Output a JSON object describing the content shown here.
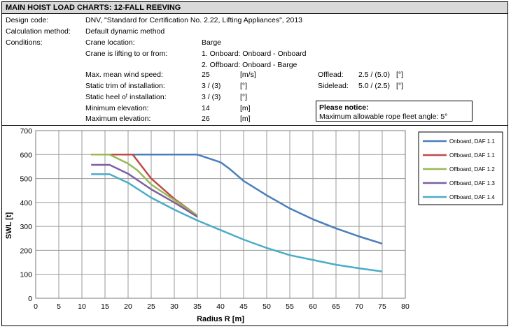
{
  "header": {
    "title": "MAIN HOIST LOAD CHARTS:  12-FALL REEVING",
    "design_code_label": "Design code:",
    "design_code_value": "DNV, \"Standard for Certification No. 2.22, Lifting Appliances\", 2013",
    "calc_label": "Calculation method:",
    "calc_value": "Default dynamic method",
    "conditions_label": "Conditions:",
    "crane_location_label": "Crane location:",
    "crane_location_value": "Barge",
    "lifting_label": "Crane is lifting to or from:",
    "lifting_1": "1. Onboard: Onboard - Onboard",
    "lifting_2": "2. Offboard: Onboard - Barge",
    "wind_label": "Max. mean wind speed:",
    "wind_value": "25",
    "wind_unit": "[m/s]",
    "trim_label": "Static trim of installation:",
    "trim_value": "3 / (3)",
    "trim_unit": "[°]",
    "heel_label": "Static heel oᶠ installation:",
    "heel_value": "3 / (3)",
    "heel_unit": "[°]",
    "min_elev_label": "Minimum elevation:",
    "min_elev_value": "14",
    "min_elev_unit": "[m]",
    "max_elev_label": "Maximum elevation:",
    "max_elev_value": "26",
    "max_elev_unit": "[m]",
    "offlead_label": "Offlead:",
    "offlead_value": "2.5 / (5.0)",
    "offlead_unit": "[°]",
    "sidelead_label": "Sidelead:",
    "sidelead_value": "5.0 / (2.5)",
    "sidelead_unit": "[°]",
    "notice_title": "Please notice:",
    "notice_text": "Maximum allowable rope fleet angle: 5°"
  },
  "chart_data": {
    "type": "line",
    "xlabel": "Radius R [m]",
    "ylabel": "SWL [t]",
    "xlim": [
      0,
      80
    ],
    "ylim": [
      0,
      700
    ],
    "xticks": [
      0,
      5,
      10,
      15,
      20,
      25,
      30,
      35,
      40,
      45,
      50,
      55,
      60,
      65,
      70,
      75,
      80
    ],
    "yticks": [
      0,
      100,
      200,
      300,
      400,
      500,
      600,
      700
    ],
    "grid": true,
    "legend_position": "right",
    "series": [
      {
        "name": "Onboard, DAF 1.1",
        "color": "#4a7ebb",
        "x": [
          12,
          16,
          20,
          25,
          30,
          35,
          40,
          42,
          45,
          50,
          55,
          60,
          65,
          70,
          75
        ],
        "y": [
          600,
          600,
          600,
          600,
          600,
          600,
          568,
          540,
          490,
          430,
          375,
          330,
          292,
          258,
          228
        ]
      },
      {
        "name": "Offboard, DAF 1.1",
        "color": "#be4b48",
        "x": [
          12,
          16,
          21,
          25,
          30,
          35
        ],
        "y": [
          600,
          600,
          600,
          500,
          415,
          345
        ]
      },
      {
        "name": "Offboard, DAF 1.2",
        "color": "#98b954",
        "x": [
          12,
          16,
          20,
          22,
          25,
          30,
          35
        ],
        "y": [
          600,
          600,
          562,
          535,
          475,
          410,
          345
        ]
      },
      {
        "name": "Offboard, DAF 1.3",
        "color": "#7d60a0",
        "x": [
          12,
          16,
          20,
          25,
          30,
          35
        ],
        "y": [
          557,
          557,
          520,
          455,
          400,
          340
        ]
      },
      {
        "name": "Offboard, DAF 1.4",
        "color": "#4bacc6",
        "x": [
          12,
          16,
          20,
          25,
          30,
          35,
          40,
          45,
          50,
          55,
          60,
          65,
          70,
          75
        ],
        "y": [
          518,
          518,
          482,
          420,
          370,
          325,
          285,
          245,
          210,
          180,
          160,
          140,
          125,
          112
        ]
      }
    ]
  }
}
